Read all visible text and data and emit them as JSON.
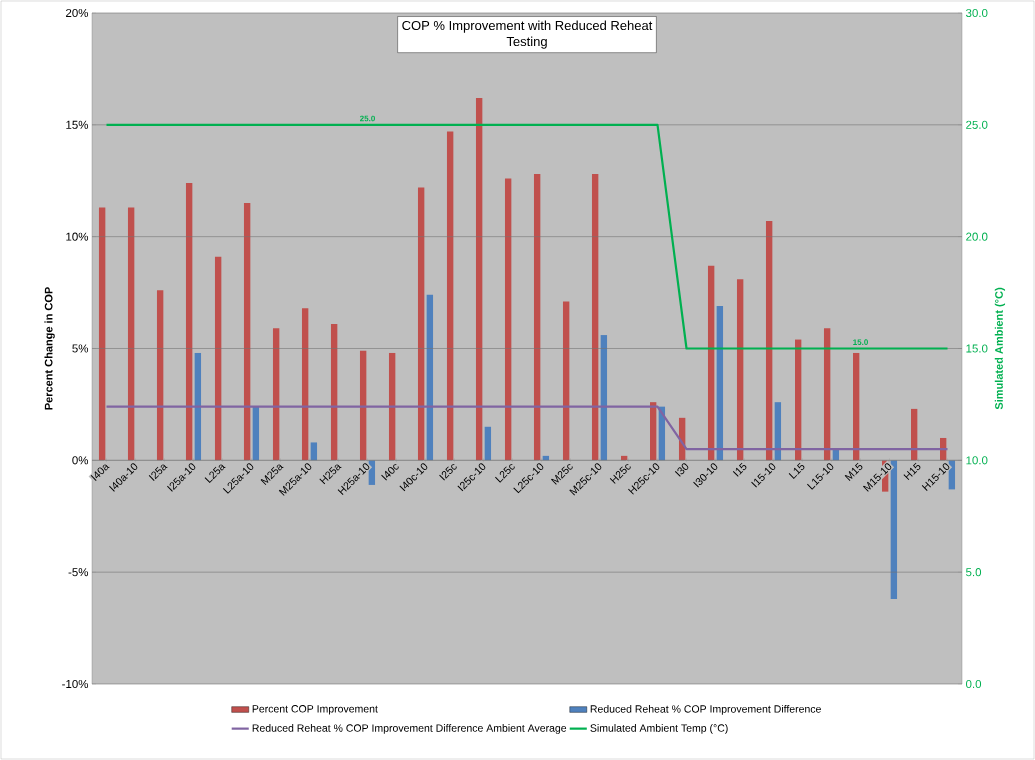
{
  "chart_data": {
    "type": "bar",
    "title": "COP % Improvement with Reduced Reheat",
    "subtitle": "Testing",
    "ylabel": "Percent Change in COP",
    "y2label": "Simulated Ambient (°C)",
    "categories": [
      "I40a",
      "I40a-10",
      "I25a",
      "I25a-10",
      "L25a",
      "L25a-10",
      "M25a",
      "M25a-10",
      "H25a",
      "H25a-10",
      "I40c",
      "I40c-10",
      "I25c",
      "I25c-10",
      "L25c",
      "L25c-10",
      "M25c",
      "M25c-10",
      "H25c",
      "H25c-10",
      "I30",
      "I30-10",
      "I15",
      "I15-10",
      "L15",
      "L15-10",
      "M15",
      "M15-10",
      "H15",
      "H15-10"
    ],
    "series": [
      {
        "name": "Percent COP Improvement",
        "color": "#c0504d",
        "values": [
          11.3,
          11.3,
          7.6,
          12.4,
          9.1,
          11.5,
          5.9,
          6.8,
          6.1,
          4.9,
          4.8,
          12.2,
          14.7,
          16.2,
          12.6,
          12.8,
          7.1,
          12.8,
          0.2,
          2.6,
          1.9,
          8.7,
          8.1,
          10.7,
          5.4,
          5.9,
          4.8,
          -1.4,
          2.3,
          1.0
        ]
      },
      {
        "name": "Reduced Reheat % COP Improvement Difference",
        "color": "#4f81bd",
        "values": [
          null,
          null,
          null,
          4.8,
          null,
          2.4,
          null,
          0.8,
          null,
          -1.1,
          null,
          7.4,
          null,
          1.5,
          null,
          0.2,
          null,
          5.6,
          null,
          2.4,
          null,
          6.9,
          null,
          2.6,
          null,
          0.5,
          null,
          -6.2,
          null,
          -1.3
        ]
      },
      {
        "name": "Reduced Reheat % COP Improvement Difference Ambient Average",
        "type": "line",
        "color": "#8064a2",
        "values": [
          2.4,
          2.4,
          2.4,
          2.4,
          2.4,
          2.4,
          2.4,
          2.4,
          2.4,
          2.4,
          2.4,
          2.4,
          2.4,
          2.4,
          2.4,
          2.4,
          2.4,
          2.4,
          2.4,
          2.4,
          0.5,
          0.5,
          0.5,
          0.5,
          0.5,
          0.5,
          0.5,
          0.5,
          0.5,
          0.5
        ]
      },
      {
        "name": "Simulated Ambient Temp (°C)",
        "type": "line",
        "axis": "y2",
        "color": "#00b050",
        "values": [
          25,
          25,
          25,
          25,
          25,
          25,
          25,
          25,
          25,
          25,
          25,
          25,
          25,
          25,
          25,
          25,
          25,
          25,
          25,
          25,
          15,
          15,
          15,
          15,
          15,
          15,
          15,
          15,
          15,
          15
        ],
        "value_labels": [
          null,
          null,
          null,
          null,
          null,
          null,
          null,
          null,
          null,
          "25.0",
          null,
          null,
          null,
          null,
          null,
          null,
          null,
          null,
          null,
          null,
          null,
          null,
          null,
          null,
          null,
          null,
          "15.0",
          null,
          null,
          null
        ]
      }
    ],
    "ylim": [
      -10,
      20
    ],
    "yticks": [
      {
        "value": -10,
        "label": "-10%"
      },
      {
        "value": -5,
        "label": "-5%"
      },
      {
        "value": 0,
        "label": "0%"
      },
      {
        "value": 5,
        "label": "5%"
      },
      {
        "value": 10,
        "label": "10%"
      },
      {
        "value": 15,
        "label": "15%"
      },
      {
        "value": 20,
        "label": "20%"
      }
    ],
    "y2lim": [
      0,
      30
    ],
    "y2ticks": [
      {
        "value": 0,
        "label": "0.0"
      },
      {
        "value": 5,
        "label": "5.0"
      },
      {
        "value": 10,
        "label": "10.0"
      },
      {
        "value": 15,
        "label": "15.0"
      },
      {
        "value": 20,
        "label": "20.0"
      },
      {
        "value": 25,
        "label": "25.0"
      },
      {
        "value": 30,
        "label": "30.0"
      }
    ],
    "grid": "y",
    "legend": "bottom"
  }
}
